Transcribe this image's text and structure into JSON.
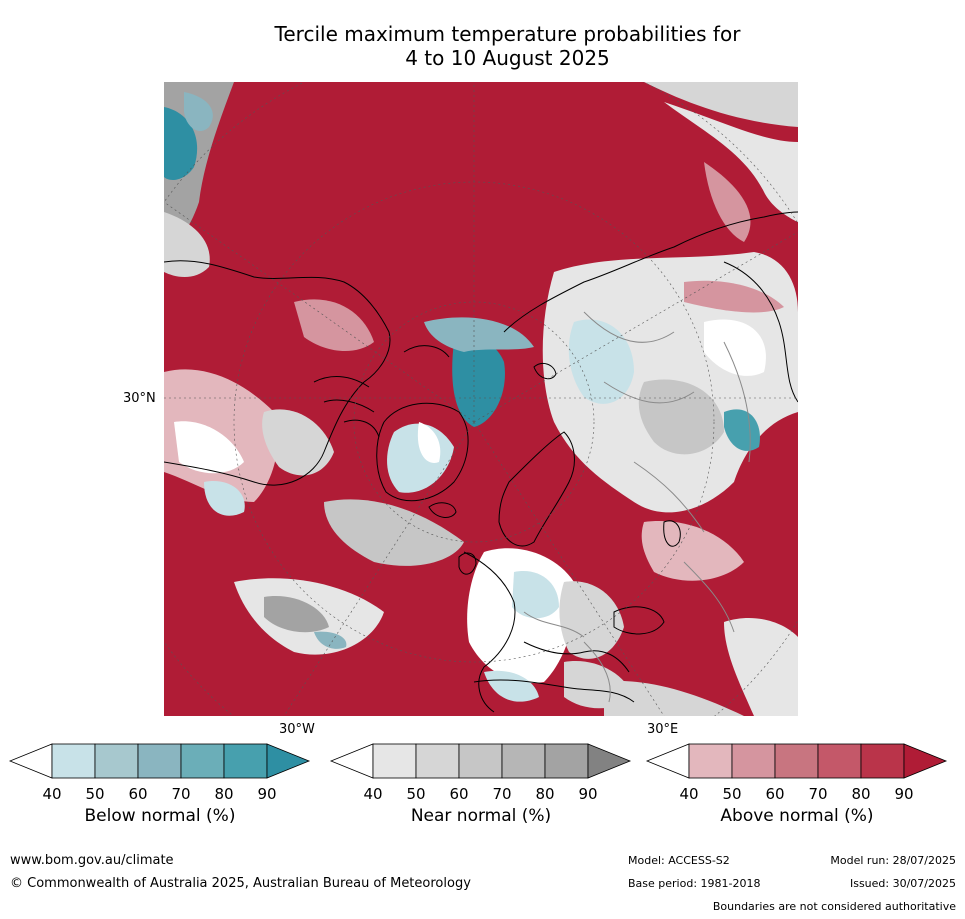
{
  "title": {
    "line1": "Tercile maximum temperature probabilities for",
    "line2": "4 to 10 August 2025"
  },
  "map": {
    "projection": "north polar stereographic",
    "lat_labels": [
      "30°N"
    ],
    "lon_labels": [
      "30°W",
      "30°E"
    ],
    "colors": {
      "ocean_warm": "#b01c36",
      "coastline": "#000000",
      "border": "#8a8a8a"
    }
  },
  "legends": [
    {
      "label": "Below normal (%)",
      "ticks": [
        "40",
        "50",
        "60",
        "70",
        "80",
        "90"
      ],
      "colors": [
        "#ffffff",
        "#c8e2e8",
        "#a7c8ce",
        "#8ab5c0",
        "#6baeb8",
        "#47a0ae",
        "#2e8fa3"
      ]
    },
    {
      "label": "Near normal (%)",
      "ticks": [
        "40",
        "50",
        "60",
        "70",
        "80",
        "90"
      ],
      "colors": [
        "#ffffff",
        "#e6e6e6",
        "#d6d6d6",
        "#c6c6c6",
        "#b6b6b6",
        "#a3a3a3",
        "#828282"
      ]
    },
    {
      "label": "Above normal (%)",
      "ticks": [
        "40",
        "50",
        "60",
        "70",
        "80",
        "90"
      ],
      "colors": [
        "#ffffff",
        "#e3b7bd",
        "#d5959f",
        "#c87580",
        "#c45869",
        "#ba344a",
        "#b01c36"
      ]
    }
  ],
  "footer": {
    "website": "www.bom.gov.au/climate",
    "copyright": "© Commonwealth of Australia 2025, Australian Bureau of Meteorology",
    "model": "Model: ACCESS-S2",
    "base_period": "Base period: 1981-2018",
    "model_run": "Model run: 28/07/2025",
    "issued": "Issued: 30/07/2025",
    "disclaimer": "Boundaries are not considered authoritative"
  }
}
